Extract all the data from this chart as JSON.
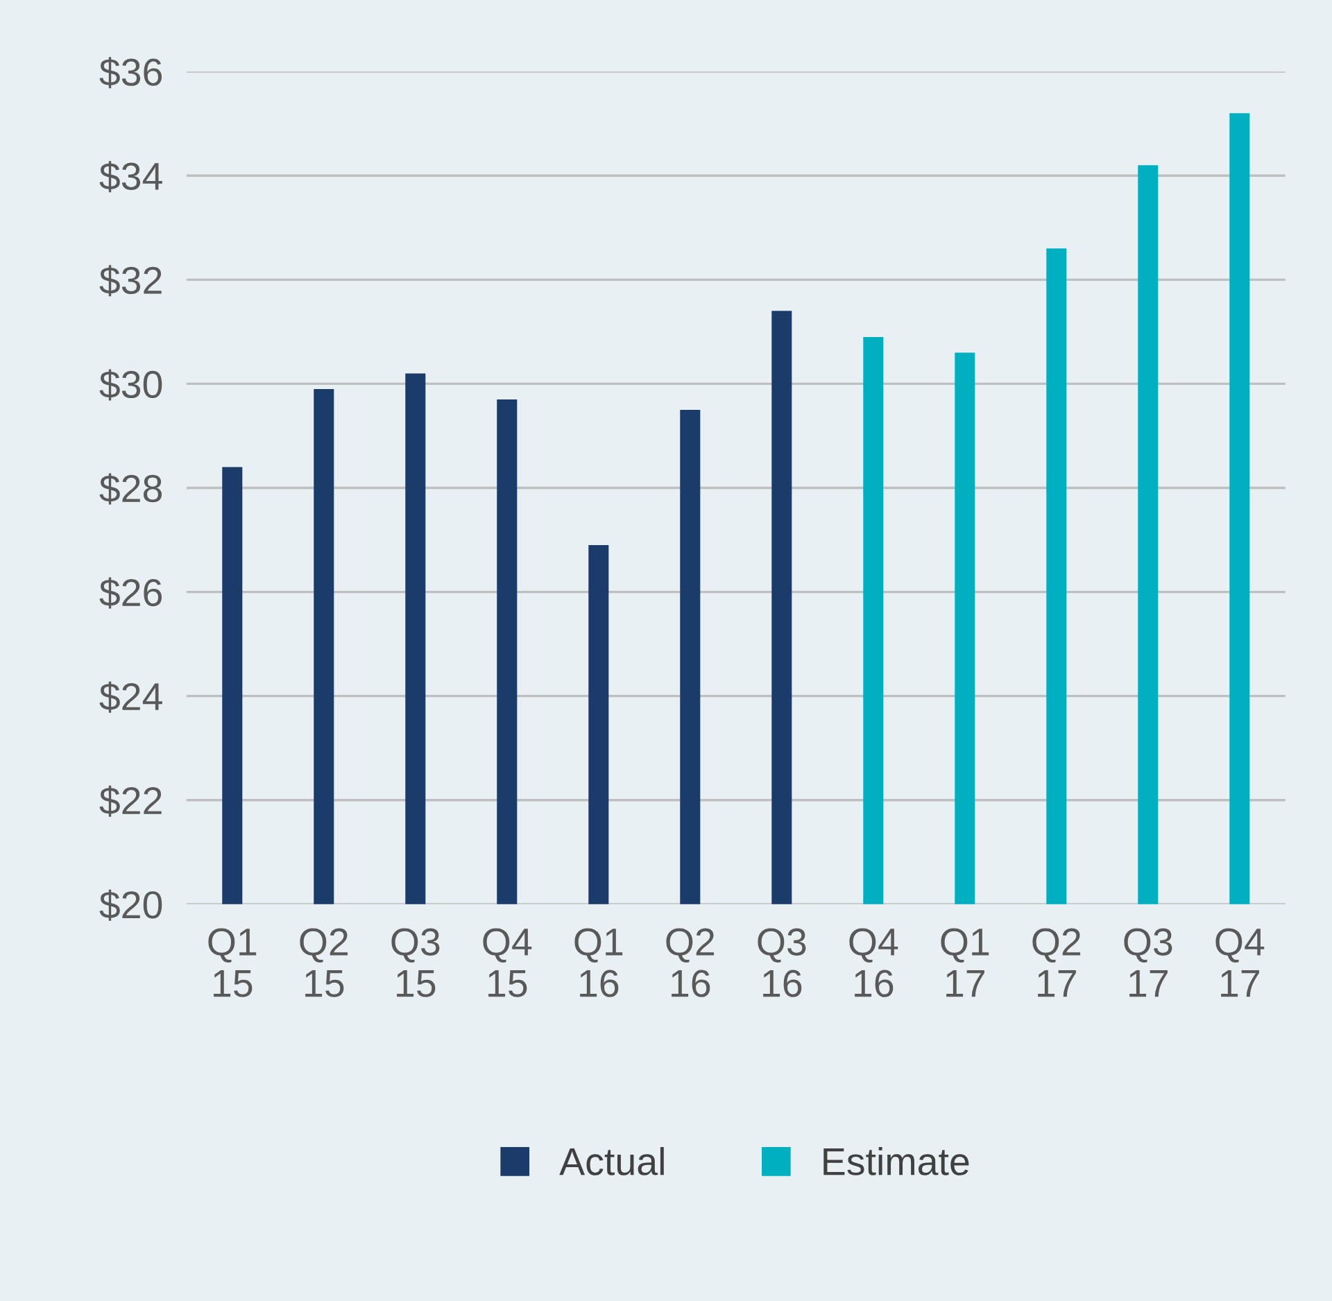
{
  "chart_data": {
    "type": "bar",
    "categories": [
      "Q1\n15",
      "Q2\n15",
      "Q3\n15",
      "Q4\n15",
      "Q1\n16",
      "Q2\n16",
      "Q3\n16",
      "Q4\n16",
      "Q1\n17",
      "Q2\n17",
      "Q3\n17",
      "Q4\n17"
    ],
    "series": [
      {
        "name": "Actual",
        "color": "#1b3c6b",
        "values": [
          28.4,
          29.9,
          30.2,
          29.7,
          26.9,
          29.5,
          31.4,
          null,
          null,
          null,
          null,
          null
        ]
      },
      {
        "name": "Estimate",
        "color": "#00afc0",
        "values": [
          null,
          null,
          null,
          null,
          null,
          null,
          null,
          30.9,
          30.6,
          32.6,
          34.2,
          35.2
        ]
      }
    ],
    "ylim": [
      20,
      36
    ],
    "yticks": [
      {
        "value": 20,
        "label": "$20"
      },
      {
        "value": 22,
        "label": "$22"
      },
      {
        "value": 24,
        "label": "$24"
      },
      {
        "value": 26,
        "label": "$26"
      },
      {
        "value": 28,
        "label": "$28"
      },
      {
        "value": 30,
        "label": "$30"
      },
      {
        "value": 32,
        "label": "$32"
      },
      {
        "value": 34,
        "label": "$34"
      },
      {
        "value": 36,
        "label": "$36"
      }
    ],
    "grid": "y",
    "legend": "bottom"
  }
}
